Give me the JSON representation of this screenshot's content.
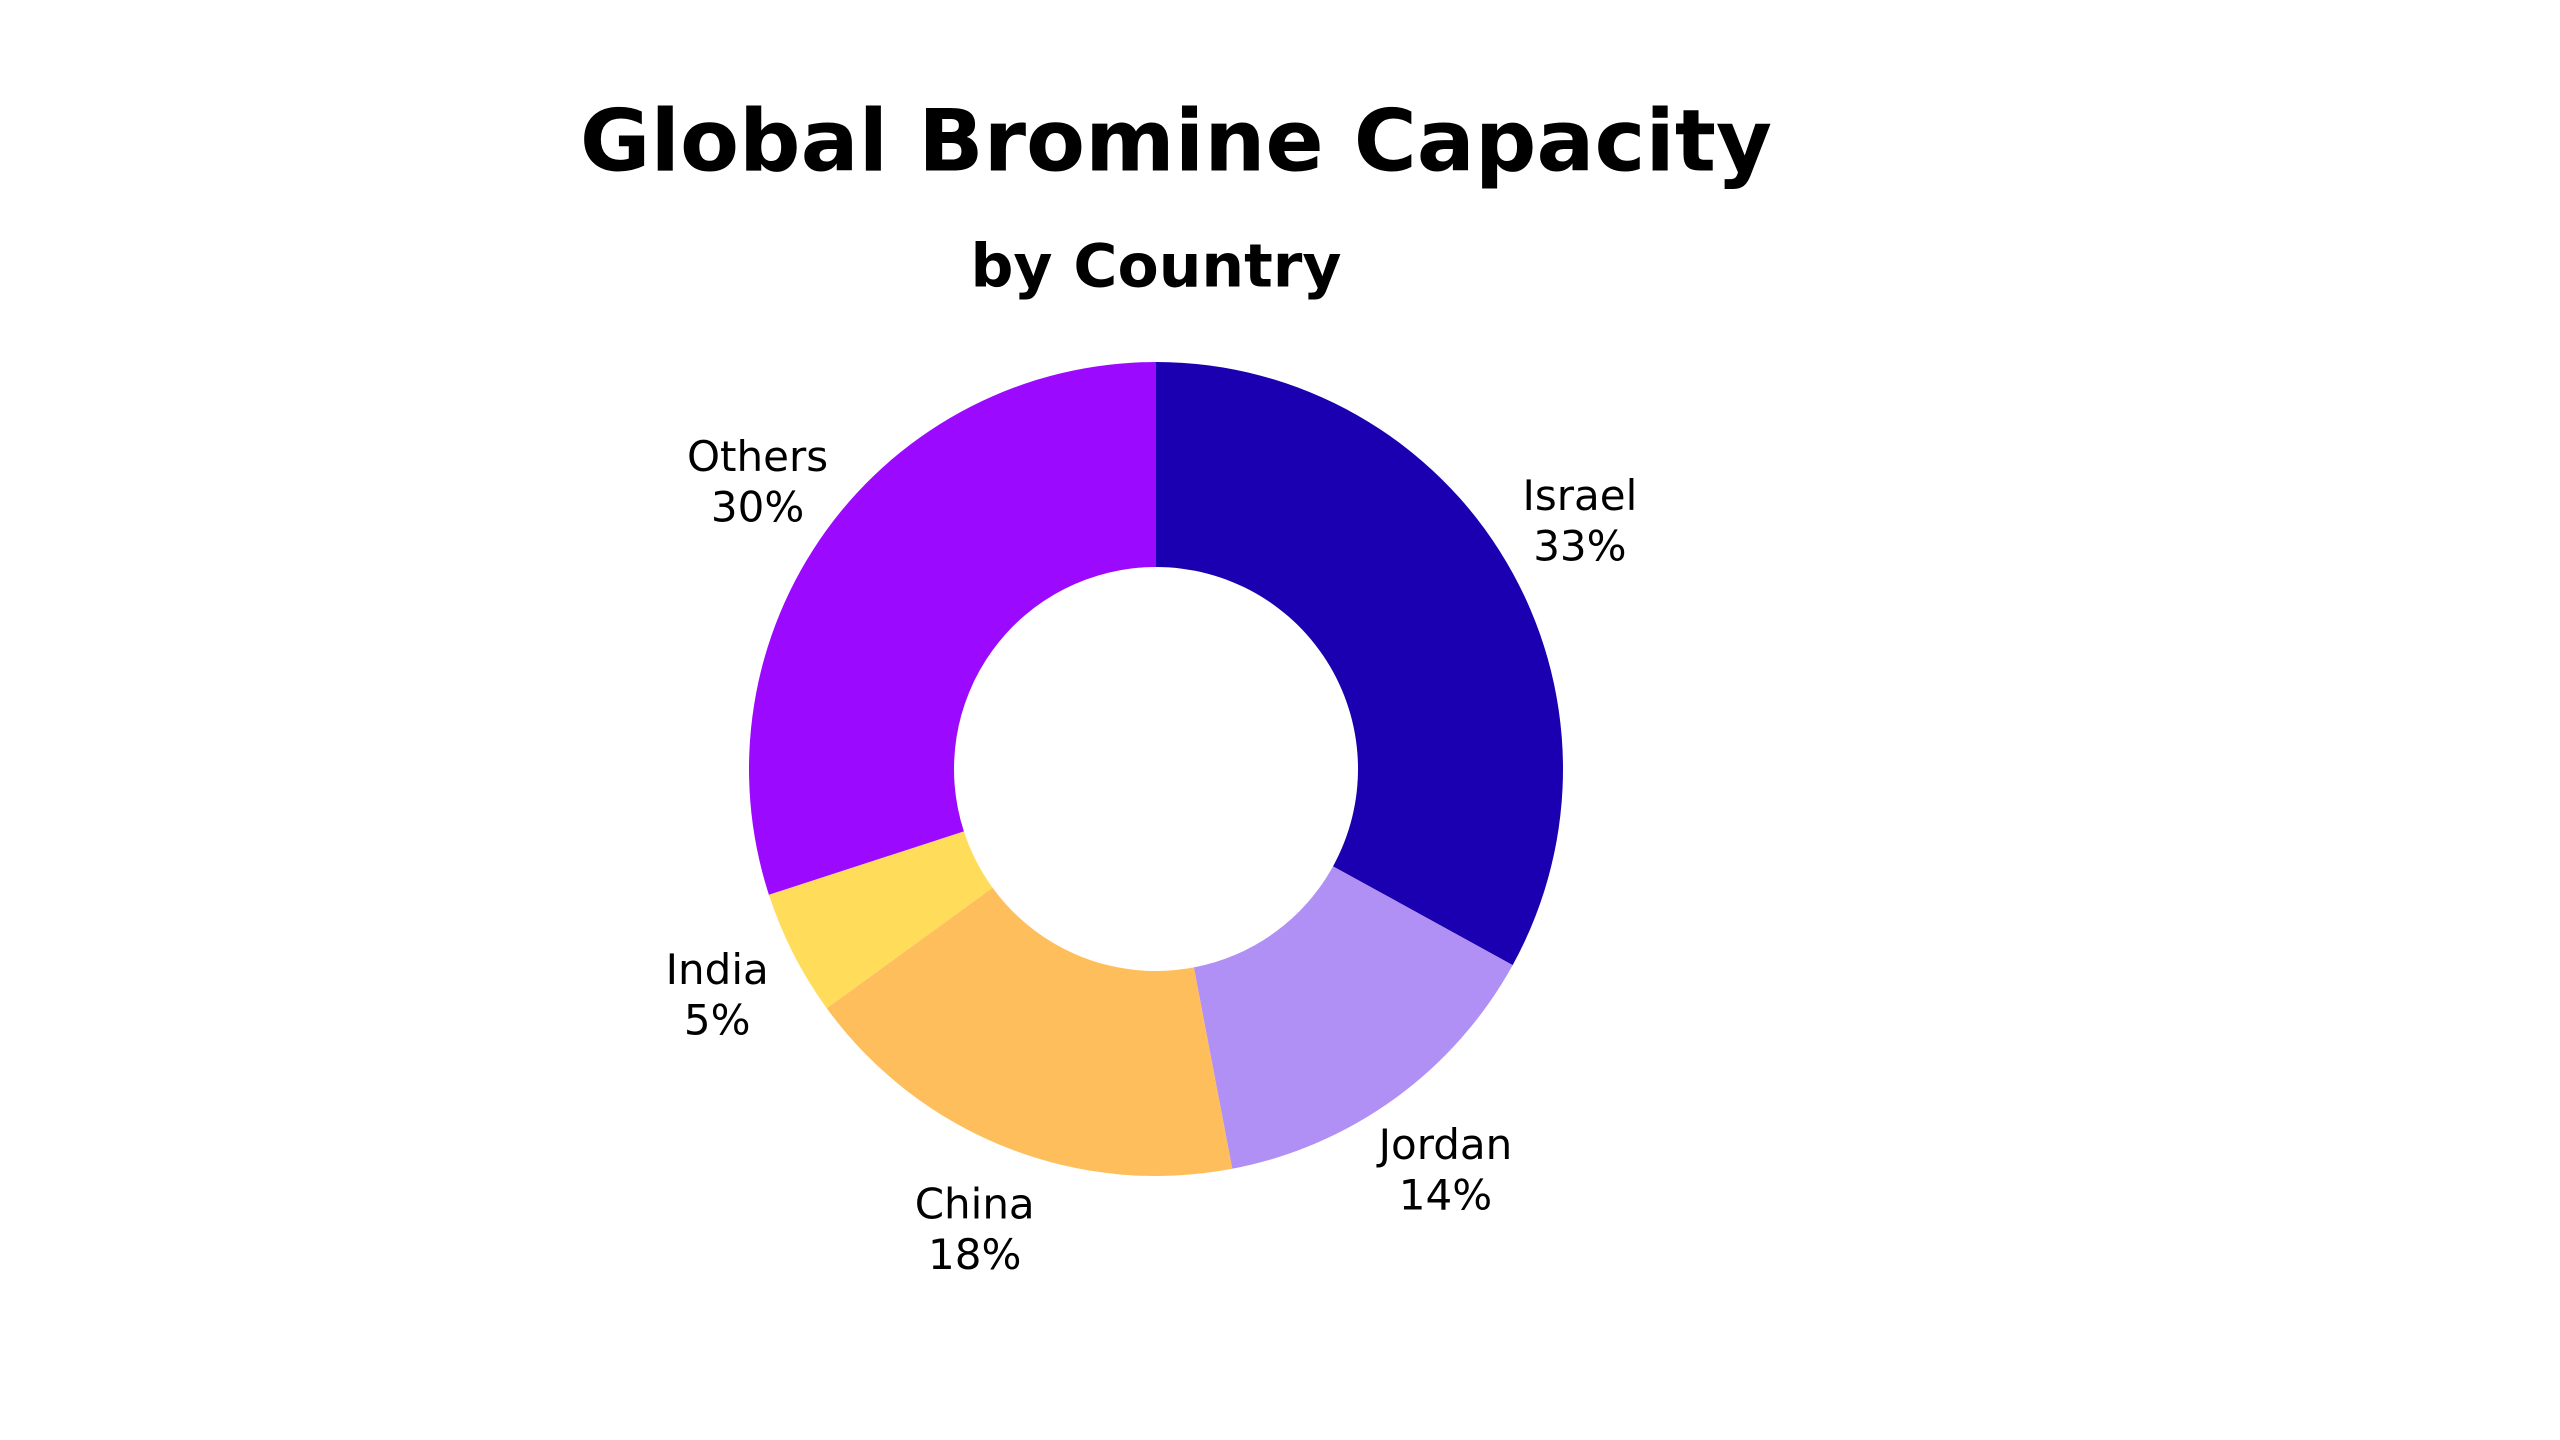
{
  "chart_data": {
    "type": "donut",
    "title": "Global Bromine Capacity",
    "subtitle": "by Country",
    "categories": [
      "Israel",
      "Jordan",
      "China",
      "India",
      "Others"
    ],
    "values": [
      33,
      14,
      18,
      5,
      30
    ],
    "value_labels": [
      "33%",
      "14%",
      "18%",
      "5%",
      "30%"
    ],
    "colors": [
      "#1a00b0",
      "#b090f5",
      "#ffbe5c",
      "#ffdc5a",
      "#9b0aff"
    ]
  }
}
